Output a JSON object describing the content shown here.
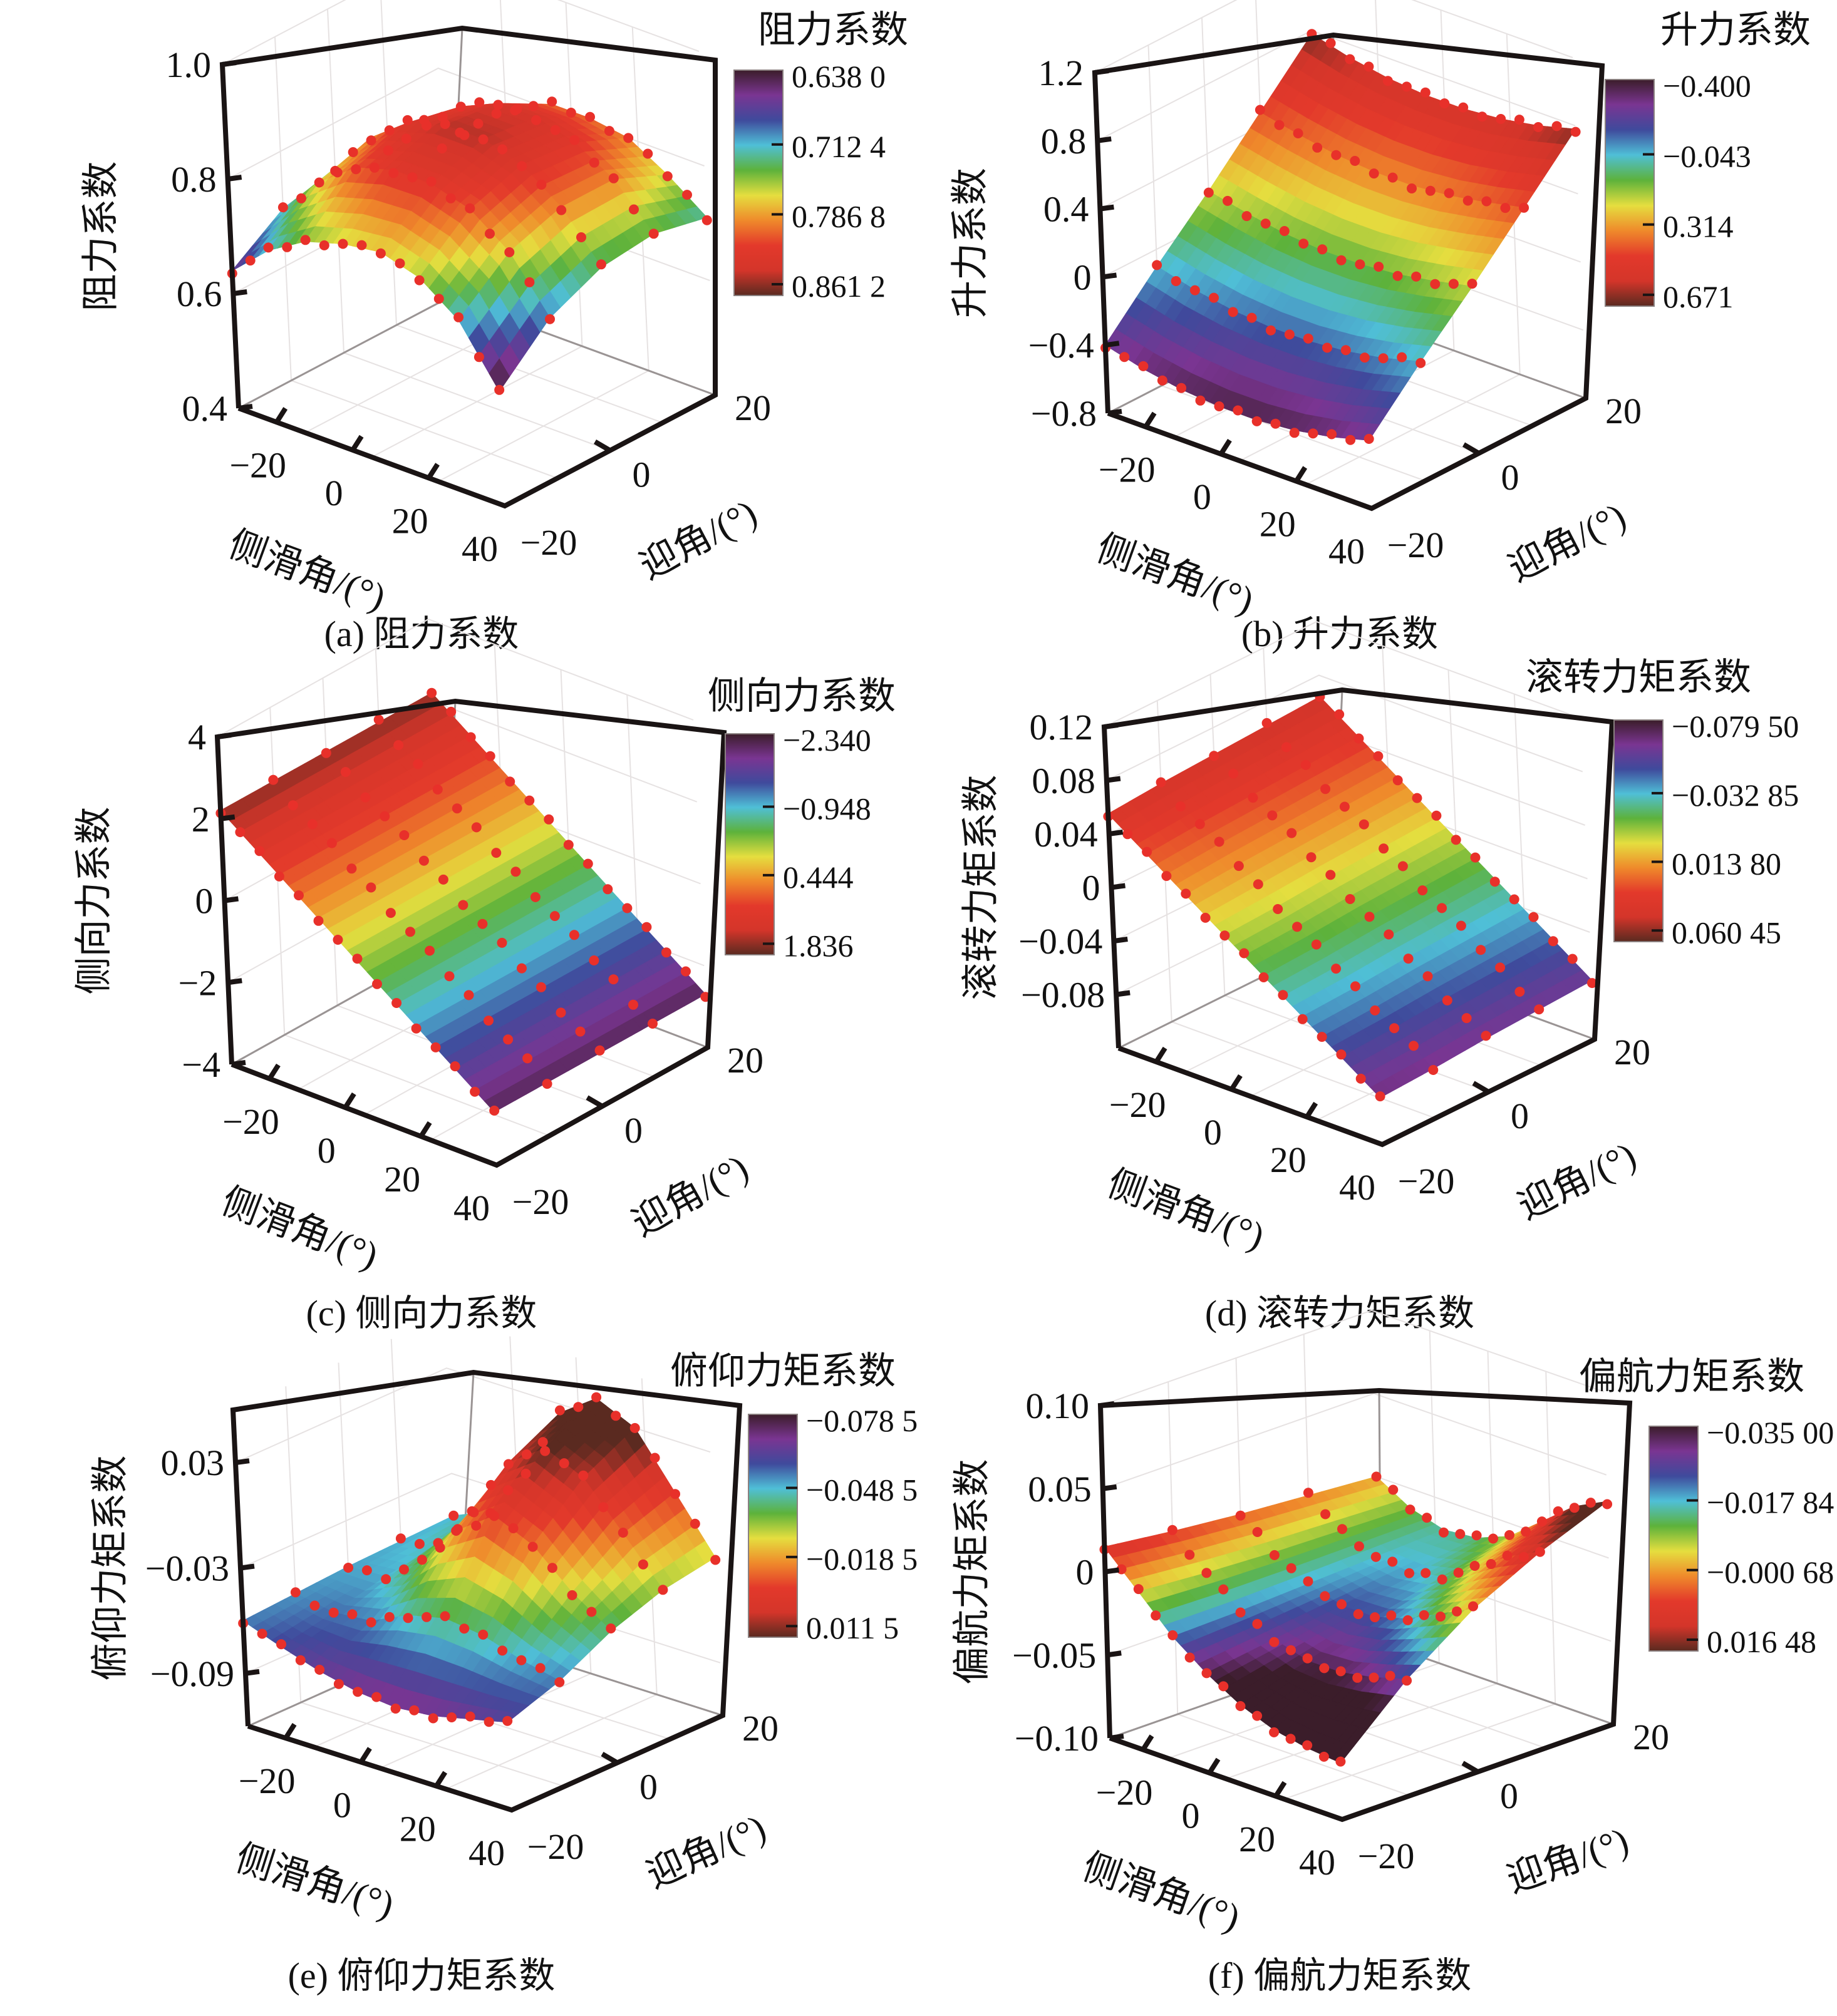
{
  "figure": {
    "x_axis_label": "侧滑角/(°)",
    "y_axis_label": "迎角/(°)",
    "x_ticks": [
      "−20",
      "0",
      "20",
      "40"
    ],
    "y_ticks": [
      "−20",
      "0",
      "20"
    ],
    "colormap": [
      "#3b1d2a",
      "#7a3592",
      "#3f4a9c",
      "#4fbfd7",
      "#5db23b",
      "#e5de3f",
      "#ef8a2b",
      "#e3392b",
      "#d4352a",
      "#5a2a20"
    ],
    "point_color": "#e8302a"
  },
  "chart_data": [
    {
      "type": "surface",
      "panel": "a",
      "title": "阻力系数",
      "caption": "(a) 阻力系数",
      "xlabel": "侧滑角/(°)",
      "ylabel": "迎角/(°)",
      "zlabel": "阻力系数",
      "xlim": [
        -30,
        40
      ],
      "ylim": [
        -20,
        20
      ],
      "zlim": [
        0.4,
        1.0
      ],
      "z_ticks": [
        "0.4",
        "0.6",
        "0.8",
        "1.0"
      ],
      "z_tick_values": [
        0.4,
        0.6,
        0.8,
        1.0
      ],
      "colorbar_ticks": [
        "0.638 0",
        "0.712 4",
        "0.786 8",
        "0.861 2"
      ],
      "x": [
        -30,
        -20,
        -10,
        0,
        10,
        20,
        30,
        40
      ],
      "y": [
        -20,
        -10,
        0,
        10,
        20
      ],
      "z": [
        [
          0.64,
          0.7,
          0.74,
          0.76,
          0.77,
          0.75,
          0.7,
          0.6
        ],
        [
          0.7,
          0.77,
          0.82,
          0.84,
          0.84,
          0.82,
          0.77,
          0.68
        ],
        [
          0.72,
          0.8,
          0.85,
          0.87,
          0.87,
          0.85,
          0.8,
          0.72
        ],
        [
          0.7,
          0.78,
          0.83,
          0.86,
          0.86,
          0.84,
          0.8,
          0.73
        ],
        [
          0.66,
          0.73,
          0.78,
          0.81,
          0.81,
          0.8,
          0.76,
          0.71
        ]
      ]
    },
    {
      "type": "surface",
      "panel": "b",
      "title": "升力系数",
      "caption": "(b) 升力系数",
      "xlabel": "侧滑角/(°)",
      "ylabel": "迎角/(°)",
      "zlabel": "升力系数",
      "xlim": [
        -30,
        40
      ],
      "ylim": [
        -20,
        20
      ],
      "zlim": [
        -0.8,
        1.2
      ],
      "z_ticks": [
        "−0.8",
        "−0.4",
        "0",
        "0.4",
        "0.8",
        "1.2"
      ],
      "z_tick_values": [
        -0.8,
        -0.4,
        0,
        0.4,
        0.8,
        1.2
      ],
      "colorbar_ticks": [
        "−0.400",
        "−0.043",
        "0.314",
        "0.671"
      ],
      "x": [
        -30,
        -20,
        -10,
        0,
        10,
        20,
        30,
        40
      ],
      "y": [
        -20,
        -10,
        0,
        10,
        20
      ],
      "z": [
        [
          -0.4,
          -0.46,
          -0.5,
          -0.52,
          -0.52,
          -0.5,
          -0.46,
          -0.4
        ],
        [
          -0.1,
          -0.16,
          -0.2,
          -0.22,
          -0.22,
          -0.2,
          -0.16,
          -0.1
        ],
        [
          0.18,
          0.13,
          0.09,
          0.07,
          0.07,
          0.09,
          0.13,
          0.18
        ],
        [
          0.48,
          0.43,
          0.39,
          0.37,
          0.37,
          0.39,
          0.43,
          0.48
        ],
        [
          0.78,
          0.72,
          0.68,
          0.66,
          0.66,
          0.68,
          0.72,
          0.78
        ]
      ]
    },
    {
      "type": "surface",
      "panel": "c",
      "title": "侧向力系数",
      "caption": "(c) 侧向力系数",
      "xlabel": "侧滑角/(°)",
      "ylabel": "迎角/(°)",
      "zlabel": "侧向力系数",
      "xlim": [
        -30,
        40
      ],
      "ylim": [
        -20,
        20
      ],
      "zlim": [
        -4,
        4
      ],
      "z_ticks": [
        "−4",
        "−2",
        "0",
        "2",
        "4"
      ],
      "z_tick_values": [
        -4,
        -2,
        0,
        2,
        4
      ],
      "colorbar_ticks": [
        "−2.340",
        "−0.948",
        "0.444",
        "1.836"
      ],
      "x": [
        -30,
        -20,
        -10,
        0,
        10,
        20,
        30,
        40
      ],
      "y": [
        -20,
        -10,
        0,
        10,
        20
      ],
      "z": [
        [
          2.2,
          1.5,
          0.8,
          0.1,
          -0.6,
          -1.3,
          -2.0,
          -2.7
        ],
        [
          2.2,
          1.5,
          0.8,
          0.1,
          -0.6,
          -1.3,
          -2.0,
          -2.7
        ],
        [
          2.2,
          1.5,
          0.8,
          0.1,
          -0.6,
          -1.3,
          -2.0,
          -2.7
        ],
        [
          2.2,
          1.5,
          0.8,
          0.1,
          -0.6,
          -1.3,
          -2.0,
          -2.7
        ],
        [
          2.2,
          1.5,
          0.8,
          0.1,
          -0.6,
          -1.3,
          -2.0,
          -2.7
        ]
      ]
    },
    {
      "type": "surface",
      "panel": "d",
      "title": "滚转力矩系数",
      "caption": "(d) 滚转力矩系数",
      "xlabel": "侧滑角/(°)",
      "ylabel": "迎角/(°)",
      "zlabel": "滚转力矩系数",
      "xlim": [
        -30,
        40
      ],
      "ylim": [
        -20,
        20
      ],
      "zlim": [
        -0.12,
        0.12
      ],
      "z_ticks": [
        "−0.08",
        "−0.04",
        "0",
        "0.04",
        "0.08",
        "0.12"
      ],
      "z_tick_values": [
        -0.08,
        -0.04,
        0,
        0.04,
        0.08,
        0.12
      ],
      "colorbar_ticks": [
        "−0.079 50",
        "−0.032 85",
        "0.013 80",
        "0.060 45"
      ],
      "x": [
        -30,
        -20,
        -10,
        0,
        10,
        20,
        30,
        40
      ],
      "y": [
        -20,
        -10,
        0,
        10,
        20
      ],
      "z": [
        [
          0.055,
          0.035,
          0.015,
          -0.005,
          -0.025,
          -0.045,
          -0.065,
          -0.085
        ],
        [
          0.058,
          0.038,
          0.018,
          -0.003,
          -0.023,
          -0.043,
          -0.063,
          -0.083
        ],
        [
          0.06,
          0.04,
          0.02,
          0.0,
          -0.02,
          -0.04,
          -0.06,
          -0.08
        ],
        [
          0.062,
          0.042,
          0.022,
          0.002,
          -0.018,
          -0.038,
          -0.058,
          -0.078
        ],
        [
          0.064,
          0.044,
          0.024,
          0.004,
          -0.016,
          -0.036,
          -0.056,
          -0.076
        ]
      ]
    },
    {
      "type": "surface",
      "panel": "e",
      "title": "俯仰力矩系数",
      "caption": "(e) 俯仰力矩系数",
      "xlabel": "侧滑角/(°)",
      "ylabel": "迎角/(°)",
      "zlabel": "俯仰力矩系数",
      "xlim": [
        -30,
        40
      ],
      "ylim": [
        -20,
        20
      ],
      "zlim": [
        -0.12,
        0.06
      ],
      "z_ticks": [
        "−0.09",
        "−0.03",
        "0.03"
      ],
      "z_tick_values": [
        -0.09,
        -0.03,
        0.03
      ],
      "colorbar_ticks": [
        "−0.078 5",
        "−0.048 5",
        "−0.018 5",
        "0.011 5"
      ],
      "x": [
        -30,
        -20,
        -10,
        0,
        10,
        20,
        30,
        40
      ],
      "y": [
        -20,
        -10,
        0,
        10,
        20
      ],
      "z": [
        [
          -0.06,
          -0.068,
          -0.075,
          -0.08,
          -0.082,
          -0.08,
          -0.075,
          -0.07
        ],
        [
          -0.058,
          -0.062,
          -0.06,
          -0.05,
          -0.045,
          -0.048,
          -0.055,
          -0.06
        ],
        [
          -0.056,
          -0.055,
          -0.04,
          -0.015,
          0.0,
          -0.01,
          -0.03,
          -0.045
        ],
        [
          -0.055,
          -0.05,
          -0.025,
          0.01,
          0.025,
          0.015,
          -0.01,
          -0.035
        ],
        [
          -0.054,
          -0.045,
          -0.015,
          0.025,
          0.04,
          0.03,
          0.0,
          -0.03
        ]
      ]
    },
    {
      "type": "surface",
      "panel": "f",
      "title": "偏航力矩系数",
      "caption": "(f) 偏航力矩系数",
      "xlabel": "侧滑角/(°)",
      "ylabel": "迎角/(°)",
      "zlabel": "偏航力矩系数",
      "xlim": [
        -30,
        40
      ],
      "ylim": [
        -20,
        20
      ],
      "zlim": [
        -0.1,
        0.1
      ],
      "z_ticks": [
        "−0.10",
        "−0.05",
        "0",
        "0.05",
        "0.10"
      ],
      "z_tick_values": [
        -0.1,
        -0.05,
        0,
        0.05,
        0.1
      ],
      "colorbar_ticks": [
        "−0.035 00",
        "−0.017 84",
        "−0.000 68",
        "0.016 48"
      ],
      "x": [
        -30,
        -20,
        -10,
        0,
        10,
        20,
        30,
        40
      ],
      "y": [
        -20,
        -10,
        0,
        10,
        20
      ],
      "z": [
        [
          0.015,
          -0.005,
          -0.025,
          -0.04,
          -0.052,
          -0.06,
          -0.064,
          -0.066
        ],
        [
          0.01,
          -0.008,
          -0.024,
          -0.034,
          -0.04,
          -0.04,
          -0.036,
          -0.03
        ],
        [
          0.006,
          -0.01,
          -0.022,
          -0.028,
          -0.028,
          -0.022,
          -0.012,
          -0.002
        ],
        [
          0.003,
          -0.011,
          -0.02,
          -0.022,
          -0.018,
          -0.006,
          0.008,
          0.018
        ],
        [
          0.0,
          -0.012,
          -0.018,
          -0.016,
          -0.008,
          0.008,
          0.024,
          0.034
        ]
      ]
    }
  ]
}
